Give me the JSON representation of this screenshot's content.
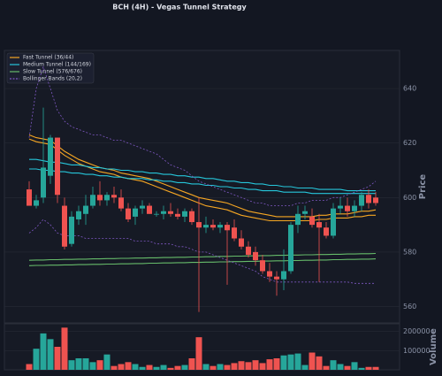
{
  "chart_data": {
    "type": "candlestick",
    "title": "BCH (4H) - Vegas Tunnel Strategy",
    "ylabel": "Price",
    "ylim": [
      554,
      654
    ],
    "yticks": [
      560,
      580,
      600,
      620,
      640
    ],
    "grid": true,
    "legend": "upper left",
    "up_color": "#26a69a",
    "down_color": "#ef5350",
    "open": [
      603,
      597,
      600,
      608,
      622,
      597,
      583,
      592,
      594,
      597,
      601,
      599,
      601,
      600,
      596,
      593,
      596,
      597,
      594,
      594,
      595,
      594,
      593,
      595,
      591,
      589,
      590,
      589,
      590,
      589,
      585,
      582,
      580,
      577,
      573,
      571,
      570,
      573,
      590,
      594,
      593,
      591,
      589,
      586,
      596,
      597,
      595,
      597,
      601,
      600
    ],
    "high": [
      606,
      601,
      633,
      623,
      622,
      600,
      595,
      597,
      601,
      604,
      606,
      602,
      604,
      603,
      598,
      597,
      599,
      598,
      595,
      597,
      598,
      596,
      596,
      596,
      600,
      593,
      592,
      591,
      591,
      592,
      588,
      584,
      582,
      579,
      576,
      573,
      581,
      591,
      597,
      597,
      596,
      594,
      591,
      598,
      600,
      600,
      599,
      602,
      603,
      602
    ],
    "low": [
      597,
      596,
      598,
      605,
      598,
      581,
      582,
      590,
      590,
      596,
      597,
      597,
      598,
      595,
      591,
      590,
      594,
      594,
      593,
      592,
      593,
      592,
      591,
      590,
      558,
      587,
      588,
      587,
      568,
      584,
      581,
      578,
      575,
      572,
      569,
      564,
      566,
      572,
      587,
      592,
      589,
      569,
      585,
      585,
      594,
      593,
      593,
      595,
      596,
      597
    ],
    "close": [
      597,
      599,
      611,
      622,
      601,
      582,
      593,
      595,
      597,
      601,
      599,
      601,
      600,
      596,
      592,
      596,
      597,
      594,
      594,
      595,
      594,
      593,
      595,
      591,
      589,
      590,
      589,
      590,
      588,
      585,
      582,
      579,
      577,
      573,
      571,
      570,
      573,
      590,
      594,
      595,
      590,
      589,
      586,
      596,
      597,
      595,
      597,
      601,
      598,
      598
    ],
    "lines": [
      {
        "name": "Fast Tunnel (36/44)",
        "color": "#f5a623",
        "dashed": false,
        "upper": [
          623,
          622,
          621.5,
          621,
          619,
          617,
          615.5,
          614,
          613,
          612,
          611,
          610.5,
          610,
          609,
          608.5,
          608,
          607.5,
          607,
          606,
          605,
          604,
          603,
          602,
          601,
          600,
          599.5,
          599,
          598.5,
          598,
          597,
          596,
          595,
          594.5,
          594,
          593.5,
          593,
          593,
          593,
          593,
          593,
          593,
          593.5,
          593.5,
          594,
          594,
          594,
          594.5,
          595,
          595,
          595.5
        ],
        "lower": [
          621.5,
          620.5,
          620,
          619.5,
          617.5,
          615.5,
          614,
          612.5,
          611.5,
          610.5,
          609.5,
          609,
          608.5,
          607.5,
          607,
          606.5,
          606,
          605,
          604,
          603,
          602,
          601,
          600,
          599,
          598,
          597,
          596.5,
          596,
          595.5,
          594.5,
          593.5,
          593,
          592.5,
          592,
          591.5,
          591.5,
          591.5,
          591.5,
          591.5,
          591.5,
          591.5,
          592,
          592,
          592.5,
          592.5,
          592.5,
          593,
          593,
          593.5,
          593.5
        ]
      },
      {
        "name": "Medium Tunnel (144/169)",
        "color": "#26c6da",
        "dashed": false,
        "upper": [
          614,
          614,
          613.5,
          613,
          613,
          612.5,
          612,
          612,
          611.5,
          611,
          611,
          610.5,
          610.5,
          610,
          610,
          609.5,
          609.5,
          609,
          609,
          608.5,
          608.5,
          608,
          608,
          607.5,
          607.5,
          607,
          607,
          606.5,
          606,
          606,
          605.5,
          605.5,
          605,
          605,
          604.5,
          604.5,
          604,
          604,
          603.5,
          603.5,
          603.5,
          603,
          603,
          603,
          603,
          602.5,
          602.5,
          602.5,
          602.5,
          602.5
        ],
        "lower": [
          610.5,
          610.5,
          610,
          610,
          609.5,
          609.5,
          609,
          609,
          608.5,
          608.5,
          608,
          608,
          607.5,
          607.5,
          607,
          607,
          607,
          606.5,
          606.5,
          606,
          606,
          605.5,
          605.5,
          605,
          605,
          604.5,
          604.5,
          604,
          604,
          603.5,
          603.5,
          603,
          603,
          602.5,
          602.5,
          602.5,
          602,
          602,
          602,
          602,
          601.5,
          601.5,
          601.5,
          601.5,
          601.5,
          601.5,
          601.5,
          601.5,
          601.5,
          601.5
        ]
      },
      {
        "name": "Slow Tunnel (576/676)",
        "color": "#66bb6a",
        "dashed": false,
        "upper": [
          577.0,
          577.1,
          577.1,
          577.2,
          577.2,
          577.3,
          577.3,
          577.4,
          577.4,
          577.5,
          577.5,
          577.6,
          577.6,
          577.7,
          577.7,
          577.8,
          577.8,
          577.9,
          577.9,
          578.0,
          578.0,
          578.1,
          578.1,
          578.2,
          578.2,
          578.3,
          578.3,
          578.4,
          578.4,
          578.5,
          578.5,
          578.6,
          578.6,
          578.7,
          578.7,
          578.8,
          578.8,
          578.9,
          578.9,
          579.0,
          579.0,
          579.1,
          579.1,
          579.2,
          579.2,
          579.3,
          579.3,
          579.4,
          579.4,
          579.5
        ],
        "lower": [
          575.0,
          575.1,
          575.1,
          575.2,
          575.2,
          575.3,
          575.3,
          575.4,
          575.4,
          575.5,
          575.5,
          575.6,
          575.6,
          575.7,
          575.7,
          575.8,
          575.8,
          575.9,
          575.9,
          576.0,
          576.0,
          576.1,
          576.1,
          576.2,
          576.2,
          576.3,
          576.3,
          576.4,
          576.4,
          576.5,
          576.5,
          576.6,
          576.6,
          576.7,
          576.7,
          576.8,
          576.8,
          576.9,
          576.9,
          577.0,
          577.0,
          577.1,
          577.1,
          577.2,
          577.2,
          577.3,
          577.3,
          577.4,
          577.4,
          577.5
        ]
      },
      {
        "name": "Bollinger Bands (20,2)",
        "color": "#7e57c2",
        "dashed": true,
        "upper": [
          622,
          640,
          648,
          640,
          632,
          628,
          626,
          625,
          624,
          623,
          623,
          622,
          621,
          621,
          620,
          619,
          618,
          617,
          616,
          614,
          612,
          611,
          610,
          608,
          606,
          605,
          604,
          603,
          602,
          601,
          600,
          599,
          598,
          598,
          597,
          597,
          597,
          597,
          598,
          598,
          599,
          599,
          599,
          600,
          600,
          601,
          602,
          603,
          604,
          606
        ],
        "lower": [
          587,
          589,
          592,
          590,
          587,
          586,
          586,
          586,
          585,
          585,
          585,
          585,
          585,
          585,
          585,
          584,
          584,
          584,
          583,
          583,
          583,
          582,
          582,
          581,
          580,
          580,
          579,
          578,
          577,
          576,
          575,
          574,
          573,
          571,
          570,
          569,
          569,
          569,
          569,
          569,
          569,
          569,
          569,
          569,
          569,
          569,
          568.5,
          568.5,
          568.5,
          568.5
        ]
      }
    ],
    "volume": {
      "ylabel": "Volume",
      "ylim": [
        0,
        240000
      ],
      "yticks": [
        100000,
        200000
      ],
      "values": [
        30000,
        110000,
        190000,
        160000,
        120000,
        220000,
        50000,
        60000,
        60000,
        40000,
        50000,
        80000,
        20000,
        30000,
        40000,
        30000,
        15000,
        25000,
        15000,
        25000,
        10000,
        20000,
        25000,
        60000,
        170000,
        30000,
        20000,
        30000,
        25000,
        35000,
        45000,
        40000,
        50000,
        35000,
        55000,
        60000,
        75000,
        80000,
        85000,
        25000,
        90000,
        70000,
        20000,
        50000,
        30000,
        20000,
        40000,
        10000,
        15000,
        15000
      ]
    }
  }
}
